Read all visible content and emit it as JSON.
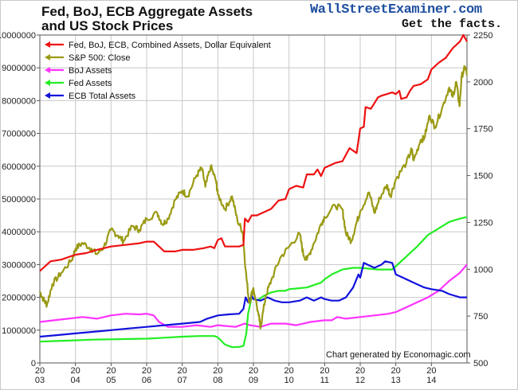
{
  "header": {
    "title_line1": "Fed, BoJ, ECB Aggregate Assets",
    "title_line2": "and US Stock Prices",
    "site": "WallStreetExaminer.com",
    "tagline": "Get the facts."
  },
  "credit": "Chart generated by Economagic.com",
  "colors": {
    "combined": "#ee1111",
    "sp500": "#9a9a14",
    "boj": "#ff33ff",
    "fed": "#22ee22",
    "ecb": "#1111dd",
    "grid": "#c8c8c8"
  },
  "chart_data": {
    "type": "line",
    "title": "Fed, BoJ, ECB Aggregate Assets and US Stock Prices",
    "x_tick_labels": [
      [
        "20",
        "03"
      ],
      [
        "20",
        "04"
      ],
      [
        "20",
        "05"
      ],
      [
        "20",
        "06"
      ],
      [
        "20",
        "07"
      ],
      [
        "20",
        "08"
      ],
      [
        "20",
        "09"
      ],
      [
        "20",
        "10"
      ],
      [
        "20",
        "11"
      ],
      [
        "20",
        "12"
      ],
      [
        "20",
        "13"
      ],
      [
        "20",
        "14"
      ]
    ],
    "xlim": [
      2003,
      2015
    ],
    "ylim_left": [
      0,
      10000000
    ],
    "ylim_right": [
      500,
      2250
    ],
    "left_tick_labels": [
      "0",
      "1000000",
      "2000000",
      "3000000",
      "4000000",
      "5000000",
      "6000000",
      "7000000",
      "8000000",
      "9000000",
      "10000000"
    ],
    "right_tick_labels": [
      "500",
      "750",
      "1000",
      "1250",
      "1500",
      "1750",
      "2000",
      "2250"
    ],
    "legend_position": "top-left",
    "series": [
      {
        "name": "Fed, BoJ, ECB, Combined Assets, Dollar Equivalent",
        "axis": "left",
        "color_key": "combined",
        "points": [
          [
            2003.0,
            2800000
          ],
          [
            2003.3,
            3100000
          ],
          [
            2003.6,
            3150000
          ],
          [
            2004.0,
            3300000
          ],
          [
            2004.3,
            3350000
          ],
          [
            2004.6,
            3450000
          ],
          [
            2005.0,
            3550000
          ],
          [
            2005.4,
            3600000
          ],
          [
            2005.8,
            3650000
          ],
          [
            2006.0,
            3700000
          ],
          [
            2006.2,
            3700000
          ],
          [
            2006.5,
            3400000
          ],
          [
            2006.8,
            3400000
          ],
          [
            2007.0,
            3450000
          ],
          [
            2007.3,
            3450000
          ],
          [
            2007.6,
            3500000
          ],
          [
            2007.8,
            3550000
          ],
          [
            2007.9,
            3500000
          ],
          [
            2008.0,
            3750000
          ],
          [
            2008.1,
            3800000
          ],
          [
            2008.2,
            3550000
          ],
          [
            2008.4,
            3550000
          ],
          [
            2008.6,
            3550000
          ],
          [
            2008.72,
            3600000
          ],
          [
            2008.76,
            4400000
          ],
          [
            2008.85,
            4300000
          ],
          [
            2008.95,
            4500000
          ],
          [
            2009.1,
            4500000
          ],
          [
            2009.2,
            4550000
          ],
          [
            2009.3,
            4600000
          ],
          [
            2009.5,
            4700000
          ],
          [
            2009.7,
            4950000
          ],
          [
            2009.9,
            5000000
          ],
          [
            2010.0,
            5300000
          ],
          [
            2010.2,
            5400000
          ],
          [
            2010.4,
            5350000
          ],
          [
            2010.5,
            5750000
          ],
          [
            2010.7,
            5750000
          ],
          [
            2010.8,
            5900000
          ],
          [
            2010.9,
            5700000
          ],
          [
            2011.0,
            5950000
          ],
          [
            2011.3,
            6100000
          ],
          [
            2011.5,
            6150000
          ],
          [
            2011.7,
            6550000
          ],
          [
            2011.9,
            6400000
          ],
          [
            2012.0,
            7150000
          ],
          [
            2012.1,
            7200000
          ],
          [
            2012.15,
            7800000
          ],
          [
            2012.3,
            7750000
          ],
          [
            2012.5,
            8100000
          ],
          [
            2012.6,
            8150000
          ],
          [
            2012.75,
            8200000
          ],
          [
            2012.9,
            8250000
          ],
          [
            2013.0,
            8200000
          ],
          [
            2013.1,
            8300000
          ],
          [
            2013.15,
            8050000
          ],
          [
            2013.3,
            8100000
          ],
          [
            2013.4,
            8300000
          ],
          [
            2013.5,
            8450000
          ],
          [
            2013.7,
            8500000
          ],
          [
            2013.9,
            8650000
          ],
          [
            2014.0,
            8950000
          ],
          [
            2014.2,
            9150000
          ],
          [
            2014.4,
            9300000
          ],
          [
            2014.6,
            9600000
          ],
          [
            2014.8,
            9800000
          ],
          [
            2014.9,
            10000000
          ],
          [
            2015.0,
            9800000
          ]
        ]
      },
      {
        "name": "S&P 500: Close",
        "axis": "right",
        "color_key": "sp500",
        "points": [
          [
            2003.0,
            880
          ],
          [
            2003.1,
            840
          ],
          [
            2003.2,
            810
          ],
          [
            2003.35,
            920
          ],
          [
            2003.6,
            980
          ],
          [
            2003.9,
            1050
          ],
          [
            2004.0,
            1110
          ],
          [
            2004.2,
            1140
          ],
          [
            2004.45,
            1110
          ],
          [
            2004.6,
            1080
          ],
          [
            2004.8,
            1120
          ],
          [
            2005.0,
            1210
          ],
          [
            2005.2,
            1180
          ],
          [
            2005.35,
            1150
          ],
          [
            2005.6,
            1230
          ],
          [
            2005.8,
            1210
          ],
          [
            2006.0,
            1270
          ],
          [
            2006.3,
            1300
          ],
          [
            2006.45,
            1240
          ],
          [
            2006.6,
            1270
          ],
          [
            2006.8,
            1370
          ],
          [
            2007.0,
            1420
          ],
          [
            2007.15,
            1390
          ],
          [
            2007.4,
            1500
          ],
          [
            2007.55,
            1540
          ],
          [
            2007.65,
            1440
          ],
          [
            2007.8,
            1550
          ],
          [
            2007.95,
            1470
          ],
          [
            2008.0,
            1400
          ],
          [
            2008.2,
            1320
          ],
          [
            2008.4,
            1390
          ],
          [
            2008.55,
            1260
          ],
          [
            2008.7,
            1200
          ],
          [
            2008.78,
            1000
          ],
          [
            2008.88,
            820
          ],
          [
            2009.0,
            900
          ],
          [
            2009.15,
            750
          ],
          [
            2009.2,
            690
          ],
          [
            2009.35,
            860
          ],
          [
            2009.5,
            940
          ],
          [
            2009.75,
            1060
          ],
          [
            2010.0,
            1120
          ],
          [
            2010.3,
            1190
          ],
          [
            2010.4,
            1080
          ],
          [
            2010.5,
            1050
          ],
          [
            2010.7,
            1140
          ],
          [
            2010.9,
            1240
          ],
          [
            2011.0,
            1280
          ],
          [
            2011.3,
            1340
          ],
          [
            2011.5,
            1320
          ],
          [
            2011.6,
            1190
          ],
          [
            2011.75,
            1150
          ],
          [
            2011.9,
            1250
          ],
          [
            2012.0,
            1310
          ],
          [
            2012.25,
            1410
          ],
          [
            2012.4,
            1300
          ],
          [
            2012.55,
            1380
          ],
          [
            2012.75,
            1450
          ],
          [
            2012.85,
            1390
          ],
          [
            2013.0,
            1480
          ],
          [
            2013.3,
            1570
          ],
          [
            2013.45,
            1640
          ],
          [
            2013.5,
            1580
          ],
          [
            2013.7,
            1690
          ],
          [
            2013.8,
            1700
          ],
          [
            2013.95,
            1820
          ],
          [
            2014.1,
            1760
          ],
          [
            2014.3,
            1860
          ],
          [
            2014.5,
            1970
          ],
          [
            2014.6,
            1920
          ],
          [
            2014.7,
            2000
          ],
          [
            2014.79,
            1870
          ],
          [
            2014.85,
            2030
          ],
          [
            2014.95,
            2080
          ],
          [
            2015.0,
            2040
          ]
        ]
      },
      {
        "name": "BoJ Assets",
        "axis": "left",
        "color_key": "boj",
        "points": [
          [
            2003.0,
            1250000
          ],
          [
            2003.4,
            1300000
          ],
          [
            2003.8,
            1350000
          ],
          [
            2004.2,
            1400000
          ],
          [
            2004.6,
            1350000
          ],
          [
            2005.0,
            1450000
          ],
          [
            2005.4,
            1500000
          ],
          [
            2005.8,
            1480000
          ],
          [
            2006.0,
            1500000
          ],
          [
            2006.2,
            1450000
          ],
          [
            2006.35,
            1250000
          ],
          [
            2006.6,
            1100000
          ],
          [
            2007.0,
            1100000
          ],
          [
            2007.4,
            1150000
          ],
          [
            2007.8,
            1100000
          ],
          [
            2008.0,
            1150000
          ],
          [
            2008.5,
            1100000
          ],
          [
            2008.75,
            1200000
          ],
          [
            2008.9,
            1150000
          ],
          [
            2009.2,
            1100000
          ],
          [
            2009.5,
            1200000
          ],
          [
            2009.9,
            1200000
          ],
          [
            2010.2,
            1150000
          ],
          [
            2010.6,
            1250000
          ],
          [
            2011.0,
            1300000
          ],
          [
            2011.2,
            1300000
          ],
          [
            2011.35,
            1400000
          ],
          [
            2011.6,
            1350000
          ],
          [
            2012.0,
            1400000
          ],
          [
            2012.4,
            1450000
          ],
          [
            2012.8,
            1500000
          ],
          [
            2013.0,
            1550000
          ],
          [
            2013.3,
            1700000
          ],
          [
            2013.6,
            1850000
          ],
          [
            2013.9,
            2000000
          ],
          [
            2014.2,
            2200000
          ],
          [
            2014.5,
            2500000
          ],
          [
            2014.8,
            2750000
          ],
          [
            2015.0,
            3000000
          ]
        ]
      },
      {
        "name": "Fed Assets",
        "axis": "left",
        "color_key": "fed",
        "points": [
          [
            2003.0,
            650000
          ],
          [
            2003.5,
            670000
          ],
          [
            2004.0,
            690000
          ],
          [
            2004.5,
            710000
          ],
          [
            2005.0,
            720000
          ],
          [
            2005.5,
            730000
          ],
          [
            2006.0,
            740000
          ],
          [
            2006.5,
            770000
          ],
          [
            2007.0,
            800000
          ],
          [
            2007.5,
            820000
          ],
          [
            2007.9,
            820000
          ],
          [
            2008.0,
            780000
          ],
          [
            2008.2,
            560000
          ],
          [
            2008.4,
            480000
          ],
          [
            2008.6,
            490000
          ],
          [
            2008.72,
            520000
          ],
          [
            2008.8,
            900000
          ],
          [
            2008.85,
            1500000
          ],
          [
            2008.95,
            2000000
          ],
          [
            2009.1,
            1900000
          ],
          [
            2009.3,
            2050000
          ],
          [
            2009.5,
            2150000
          ],
          [
            2009.7,
            2200000
          ],
          [
            2009.9,
            2200000
          ],
          [
            2010.0,
            2250000
          ],
          [
            2010.5,
            2300000
          ],
          [
            2010.9,
            2450000
          ],
          [
            2011.0,
            2550000
          ],
          [
            2011.2,
            2700000
          ],
          [
            2011.5,
            2850000
          ],
          [
            2011.8,
            2900000
          ],
          [
            2012.0,
            2900000
          ],
          [
            2012.5,
            2850000
          ],
          [
            2012.9,
            2850000
          ],
          [
            2013.0,
            2950000
          ],
          [
            2013.3,
            3250000
          ],
          [
            2013.6,
            3550000
          ],
          [
            2013.9,
            3900000
          ],
          [
            2014.2,
            4100000
          ],
          [
            2014.5,
            4300000
          ],
          [
            2014.8,
            4400000
          ],
          [
            2015.0,
            4450000
          ]
        ]
      },
      {
        "name": "ECB Total Assets",
        "axis": "left",
        "color_key": "ecb",
        "points": [
          [
            2003.0,
            800000
          ],
          [
            2003.5,
            850000
          ],
          [
            2004.0,
            900000
          ],
          [
            2004.5,
            950000
          ],
          [
            2005.0,
            1000000
          ],
          [
            2005.5,
            1050000
          ],
          [
            2006.0,
            1100000
          ],
          [
            2006.5,
            1150000
          ],
          [
            2007.0,
            1200000
          ],
          [
            2007.5,
            1250000
          ],
          [
            2007.7,
            1350000
          ],
          [
            2008.0,
            1450000
          ],
          [
            2008.3,
            1480000
          ],
          [
            2008.6,
            1500000
          ],
          [
            2008.72,
            1650000
          ],
          [
            2008.78,
            2000000
          ],
          [
            2008.85,
            1850000
          ],
          [
            2008.95,
            2050000
          ],
          [
            2009.0,
            1950000
          ],
          [
            2009.2,
            1900000
          ],
          [
            2009.4,
            2000000
          ],
          [
            2009.6,
            1900000
          ],
          [
            2009.8,
            1850000
          ],
          [
            2010.0,
            1850000
          ],
          [
            2010.3,
            1900000
          ],
          [
            2010.5,
            2000000
          ],
          [
            2010.7,
            1900000
          ],
          [
            2010.9,
            2000000
          ],
          [
            2011.0,
            1950000
          ],
          [
            2011.2,
            1900000
          ],
          [
            2011.4,
            1900000
          ],
          [
            2011.6,
            2000000
          ],
          [
            2011.8,
            2300000
          ],
          [
            2011.95,
            2700000
          ],
          [
            2012.0,
            2600000
          ],
          [
            2012.1,
            3050000
          ],
          [
            2012.2,
            3000000
          ],
          [
            2012.4,
            2900000
          ],
          [
            2012.6,
            3000000
          ],
          [
            2012.7,
            3100000
          ],
          [
            2012.9,
            3050000
          ],
          [
            2013.0,
            2700000
          ],
          [
            2013.2,
            2600000
          ],
          [
            2013.5,
            2450000
          ],
          [
            2013.8,
            2300000
          ],
          [
            2014.0,
            2250000
          ],
          [
            2014.3,
            2200000
          ],
          [
            2014.5,
            2100000
          ],
          [
            2014.65,
            2050000
          ],
          [
            2014.8,
            2000000
          ],
          [
            2015.0,
            2000000
          ]
        ]
      }
    ]
  }
}
